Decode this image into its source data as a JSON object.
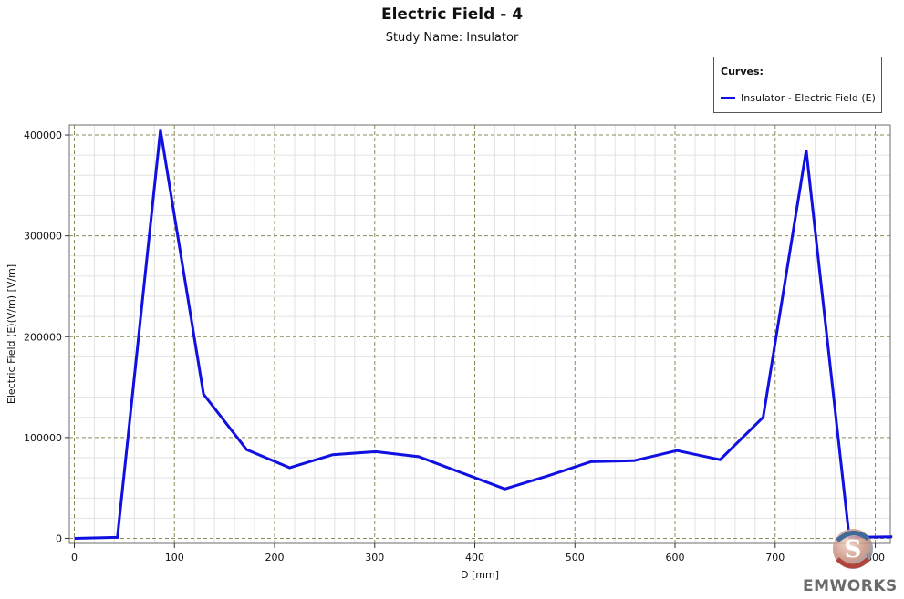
{
  "chart_data": {
    "type": "line",
    "title": "Electric Field - 4",
    "subtitle": "Study Name: Insulator",
    "xlabel": "D [mm]",
    "ylabel": "Electric Field (E)(V/m) [V/m]",
    "xlim": [
      -5,
      815
    ],
    "ylim": [
      -5000,
      410000
    ],
    "x_ticks": [
      0,
      100,
      200,
      300,
      400,
      500,
      600,
      700,
      800
    ],
    "y_ticks": [
      0,
      100000,
      200000,
      300000,
      400000
    ],
    "y_tick_labels": [
      "0",
      "100000",
      "200000",
      "300000",
      "400000"
    ],
    "grid": true,
    "legend": {
      "title": "Curves:",
      "position": "top-right"
    },
    "series": [
      {
        "name": "Insulator - Electric Field (E)",
        "color": "#1010e0",
        "x": [
          0,
          43,
          86,
          129,
          172,
          215,
          258,
          301,
          344,
          387,
          430,
          473,
          516,
          559,
          602,
          645,
          688,
          731,
          774,
          817
        ],
        "y": [
          0,
          1000,
          405000,
          143000,
          88000,
          70000,
          83000,
          86000,
          81000,
          65000,
          49000,
          62000,
          76000,
          77000,
          87000,
          78000,
          120000,
          385000,
          1000,
          1500
        ]
      }
    ]
  },
  "logo": {
    "text": "EMWORKS",
    "mark_letter": "S"
  }
}
